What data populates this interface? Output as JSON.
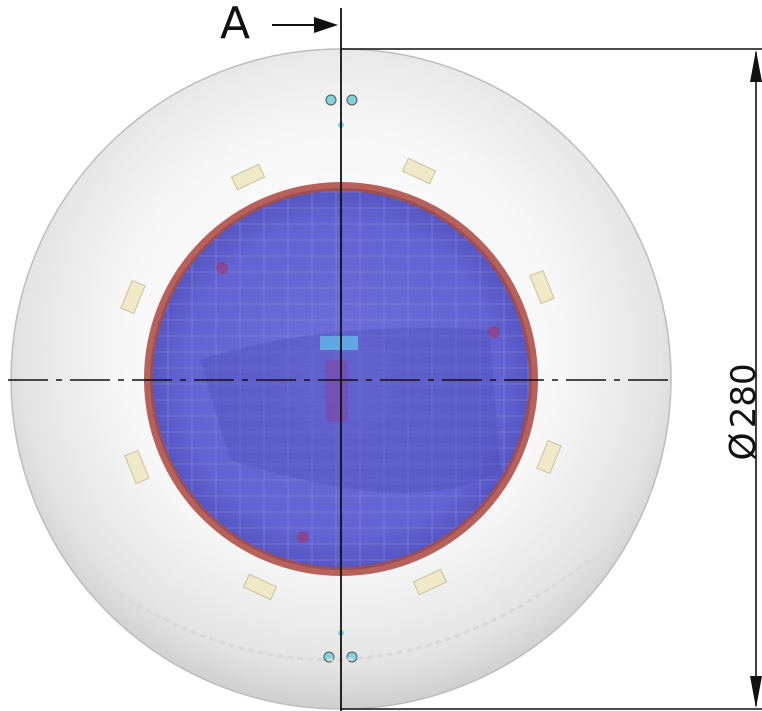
{
  "section_label": "A",
  "dimension": {
    "symbol": "Ø",
    "value": "280"
  },
  "colors": {
    "housing": "#f2f2f2",
    "lens": "#6a6ad8",
    "lens_rim": "#b8605a",
    "led": "#efe9c8",
    "line": "#111111"
  }
}
